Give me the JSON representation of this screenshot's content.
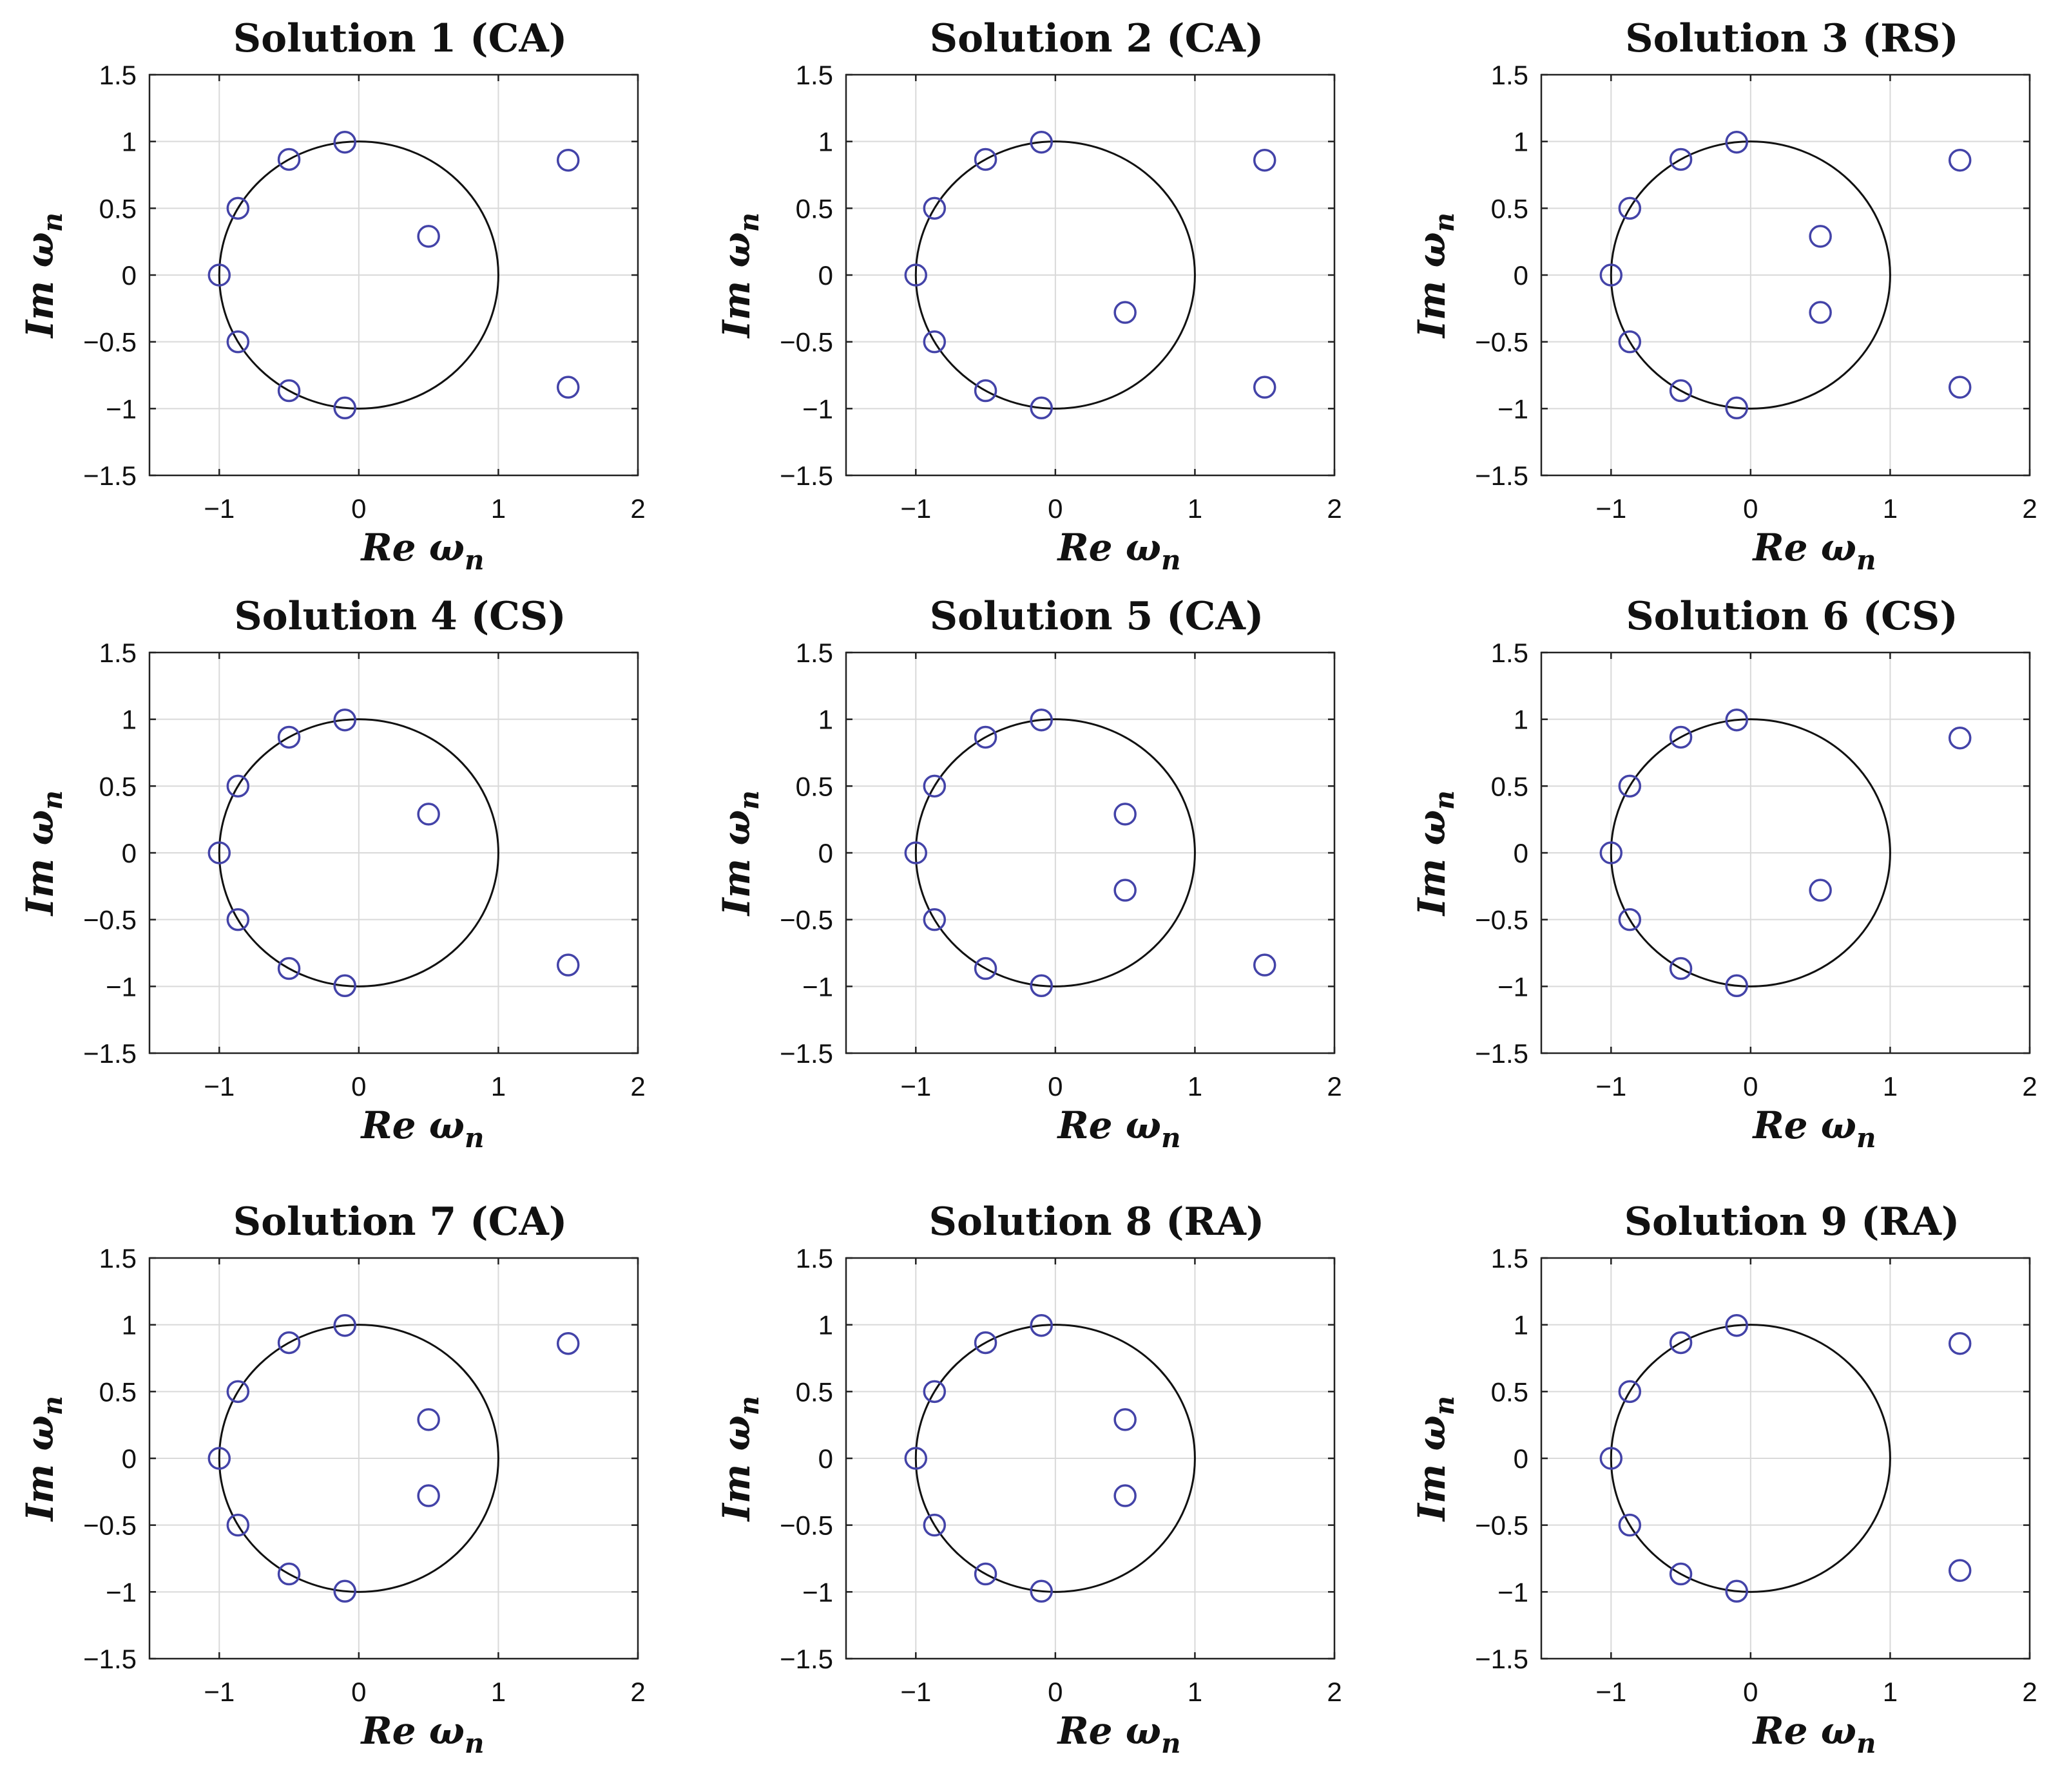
{
  "figure": {
    "colors": {
      "marker": "#4343a8",
      "circle": "#111111",
      "grid": "#d9d9d9",
      "axes": "#222222"
    }
  },
  "chart_data": [
    {
      "type": "scatter",
      "title": "Solution 1 (CA)",
      "xlabel": "Re ωn",
      "ylabel": "Im ωn",
      "xlim": [
        -1.5,
        2
      ],
      "ylim": [
        -1.5,
        1.5
      ],
      "xticks": [
        "−1",
        "0",
        "1",
        "2"
      ],
      "yticks": [
        "1.5",
        "1",
        "0.5",
        "0",
        "−0.5",
        "−1",
        "−1.5"
      ],
      "grid": true,
      "unit_circle": true,
      "points": [
        [
          -1,
          0
        ],
        [
          -0.866,
          0.5
        ],
        [
          -0.5,
          0.866
        ],
        [
          -0.1,
          0.995
        ],
        [
          -0.866,
          -0.5
        ],
        [
          -0.5,
          -0.866
        ],
        [
          -0.1,
          -0.995
        ],
        [
          0.5,
          0.29
        ],
        [
          1.5,
          0.86
        ],
        [
          1.5,
          -0.84
        ]
      ]
    },
    {
      "type": "scatter",
      "title": "Solution 2 (CA)",
      "xlabel": "Re ωn",
      "ylabel": "Im ωn",
      "xlim": [
        -1.5,
        2
      ],
      "ylim": [
        -1.5,
        1.5
      ],
      "xticks": [
        "−1",
        "0",
        "1",
        "2"
      ],
      "yticks": [
        "1.5",
        "1",
        "0.5",
        "0",
        "−0.5",
        "−1",
        "−1.5"
      ],
      "grid": true,
      "unit_circle": true,
      "points": [
        [
          -1,
          0
        ],
        [
          -0.866,
          0.5
        ],
        [
          -0.5,
          0.866
        ],
        [
          -0.1,
          0.995
        ],
        [
          -0.866,
          -0.5
        ],
        [
          -0.5,
          -0.866
        ],
        [
          -0.1,
          -0.995
        ],
        [
          0.5,
          -0.28
        ],
        [
          1.5,
          0.86
        ],
        [
          1.5,
          -0.84
        ]
      ]
    },
    {
      "type": "scatter",
      "title": "Solution 3 (RS)",
      "xlabel": "Re ωn",
      "ylabel": "Im ωn",
      "xlim": [
        -1.5,
        2
      ],
      "ylim": [
        -1.5,
        1.5
      ],
      "xticks": [
        "−1",
        "0",
        "1",
        "2"
      ],
      "yticks": [
        "1.5",
        "1",
        "0.5",
        "0",
        "−0.5",
        "−1",
        "−1.5"
      ],
      "grid": true,
      "unit_circle": true,
      "points": [
        [
          -1,
          0
        ],
        [
          -0.866,
          0.5
        ],
        [
          -0.5,
          0.866
        ],
        [
          -0.1,
          0.995
        ],
        [
          -0.866,
          -0.5
        ],
        [
          -0.5,
          -0.866
        ],
        [
          -0.1,
          -0.995
        ],
        [
          0.5,
          0.29
        ],
        [
          0.5,
          -0.28
        ],
        [
          1.5,
          0.86
        ],
        [
          1.5,
          -0.84
        ]
      ]
    },
    {
      "type": "scatter",
      "title": "Solution 4 (CS)",
      "xlabel": "Re ωn",
      "ylabel": "Im ωn",
      "xlim": [
        -1.5,
        2
      ],
      "ylim": [
        -1.5,
        1.5
      ],
      "xticks": [
        "−1",
        "0",
        "1",
        "2"
      ],
      "yticks": [
        "1.5",
        "1",
        "0.5",
        "0",
        "−0.5",
        "−1",
        "−1.5"
      ],
      "grid": true,
      "unit_circle": true,
      "points": [
        [
          -1,
          0
        ],
        [
          -0.866,
          0.5
        ],
        [
          -0.5,
          0.866
        ],
        [
          -0.1,
          0.995
        ],
        [
          -0.866,
          -0.5
        ],
        [
          -0.5,
          -0.866
        ],
        [
          -0.1,
          -0.995
        ],
        [
          0.5,
          0.29
        ],
        [
          1.5,
          -0.84
        ]
      ]
    },
    {
      "type": "scatter",
      "title": "Solution 5 (CA)",
      "xlabel": "Re ωn",
      "ylabel": "Im ωn",
      "xlim": [
        -1.5,
        2
      ],
      "ylim": [
        -1.5,
        1.5
      ],
      "xticks": [
        "−1",
        "0",
        "1",
        "2"
      ],
      "yticks": [
        "1.5",
        "1",
        "0.5",
        "0",
        "−0.5",
        "−1",
        "−1.5"
      ],
      "grid": true,
      "unit_circle": true,
      "points": [
        [
          -1,
          0
        ],
        [
          -0.866,
          0.5
        ],
        [
          -0.5,
          0.866
        ],
        [
          -0.1,
          0.995
        ],
        [
          -0.866,
          -0.5
        ],
        [
          -0.5,
          -0.866
        ],
        [
          -0.1,
          -0.995
        ],
        [
          0.5,
          0.29
        ],
        [
          0.5,
          -0.28
        ],
        [
          1.5,
          -0.84
        ]
      ]
    },
    {
      "type": "scatter",
      "title": "Solution 6 (CS)",
      "xlabel": "Re ωn",
      "ylabel": "Im ωn",
      "xlim": [
        -1.5,
        2
      ],
      "ylim": [
        -1.5,
        1.5
      ],
      "xticks": [
        "−1",
        "0",
        "1",
        "2"
      ],
      "yticks": [
        "1.5",
        "1",
        "0.5",
        "0",
        "−0.5",
        "−1",
        "−1.5"
      ],
      "grid": true,
      "unit_circle": true,
      "points": [
        [
          -1,
          0
        ],
        [
          -0.866,
          0.5
        ],
        [
          -0.5,
          0.866
        ],
        [
          -0.1,
          0.995
        ],
        [
          -0.866,
          -0.5
        ],
        [
          -0.5,
          -0.866
        ],
        [
          -0.1,
          -0.995
        ],
        [
          0.5,
          -0.28
        ],
        [
          1.5,
          0.86
        ]
      ]
    },
    {
      "type": "scatter",
      "title": "Solution 7 (CA)",
      "xlabel": "Re ωn",
      "ylabel": "Im ωn",
      "xlim": [
        -1.5,
        2
      ],
      "ylim": [
        -1.5,
        1.5
      ],
      "xticks": [
        "−1",
        "0",
        "1",
        "2"
      ],
      "yticks": [
        "1.5",
        "1",
        "0.5",
        "0",
        "−0.5",
        "−1",
        "−1.5"
      ],
      "grid": true,
      "unit_circle": true,
      "points": [
        [
          -1,
          0
        ],
        [
          -0.866,
          0.5
        ],
        [
          -0.5,
          0.866
        ],
        [
          -0.1,
          0.995
        ],
        [
          -0.866,
          -0.5
        ],
        [
          -0.5,
          -0.866
        ],
        [
          -0.1,
          -0.995
        ],
        [
          0.5,
          0.29
        ],
        [
          0.5,
          -0.28
        ],
        [
          1.5,
          0.86
        ]
      ]
    },
    {
      "type": "scatter",
      "title": "Solution 8 (RA)",
      "xlabel": "Re ωn",
      "ylabel": "Im ωn",
      "xlim": [
        -1.5,
        2
      ],
      "ylim": [
        -1.5,
        1.5
      ],
      "xticks": [
        "−1",
        "0",
        "1",
        "2"
      ],
      "yticks": [
        "1.5",
        "1",
        "0.5",
        "0",
        "−0.5",
        "−1",
        "−1.5"
      ],
      "grid": true,
      "unit_circle": true,
      "points": [
        [
          -1,
          0
        ],
        [
          -0.866,
          0.5
        ],
        [
          -0.5,
          0.866
        ],
        [
          -0.1,
          0.995
        ],
        [
          -0.866,
          -0.5
        ],
        [
          -0.5,
          -0.866
        ],
        [
          -0.1,
          -0.995
        ],
        [
          0.5,
          0.29
        ],
        [
          0.5,
          -0.28
        ]
      ]
    },
    {
      "type": "scatter",
      "title": "Solution 9 (RA)",
      "xlabel": "Re ωn",
      "ylabel": "Im ωn",
      "xlim": [
        -1.5,
        2
      ],
      "ylim": [
        -1.5,
        1.5
      ],
      "xticks": [
        "−1",
        "0",
        "1",
        "2"
      ],
      "yticks": [
        "1.5",
        "1",
        "0.5",
        "0",
        "−0.5",
        "−1",
        "−1.5"
      ],
      "grid": true,
      "unit_circle": true,
      "points": [
        [
          -1,
          0
        ],
        [
          -0.866,
          0.5
        ],
        [
          -0.5,
          0.866
        ],
        [
          -0.1,
          0.995
        ],
        [
          -0.866,
          -0.5
        ],
        [
          -0.5,
          -0.866
        ],
        [
          -0.1,
          -0.995
        ],
        [
          1.5,
          0.86
        ],
        [
          1.5,
          -0.84
        ]
      ]
    }
  ]
}
